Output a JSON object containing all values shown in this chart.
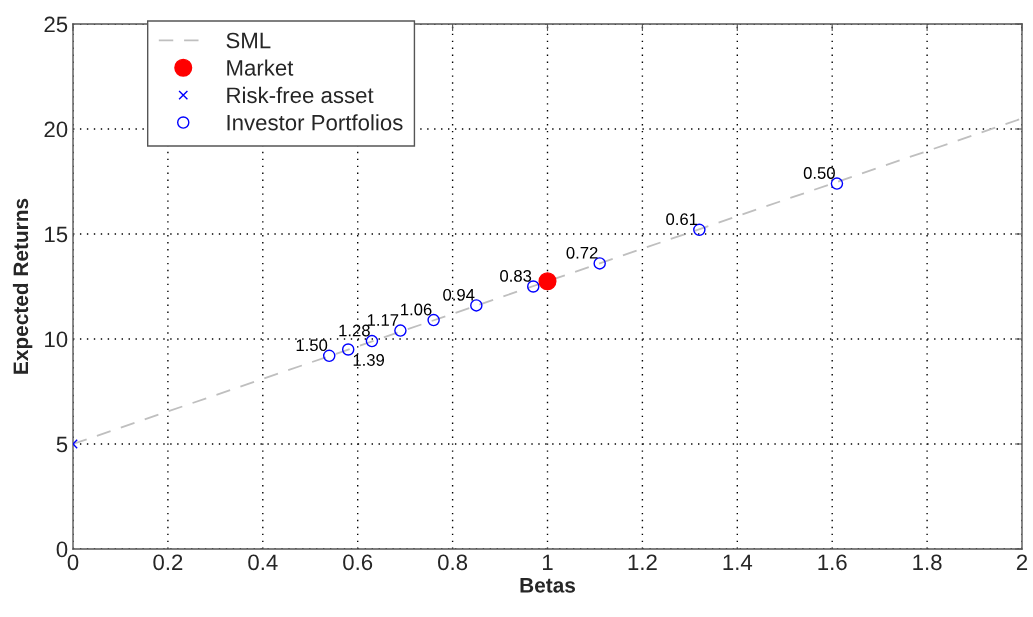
{
  "chart_data": {
    "type": "scatter",
    "xlabel": "Betas",
    "ylabel": "Expected Returns",
    "xlim": [
      0,
      2
    ],
    "ylim": [
      0,
      25
    ],
    "xticks": [
      0,
      0.2,
      0.4,
      0.6,
      0.8,
      1,
      1.2,
      1.4,
      1.6,
      1.8,
      2
    ],
    "yticks": [
      0,
      5,
      10,
      15,
      20,
      25
    ],
    "grid": true,
    "legend": "top left",
    "series": [
      {
        "name": "SML",
        "type": "line",
        "color": "#bfbfbf",
        "line_style": "dashed",
        "marker": "none",
        "x": [
          0,
          2
        ],
        "values": [
          5,
          20.5
        ]
      },
      {
        "name": "Market",
        "color": "#ff0000",
        "marker": "circle",
        "x": [
          1
        ],
        "values": [
          12.75
        ]
      },
      {
        "name": "Risk-free asset",
        "color": "#0000ff",
        "marker": "cross",
        "x": [
          0
        ],
        "values": [
          5
        ]
      },
      {
        "name": "Investor Portfolios",
        "color": "#0000ff",
        "marker": "circle",
        "x": [
          0.54,
          0.58,
          0.63,
          0.69,
          0.76,
          0.85,
          0.97,
          1.11,
          1.32,
          1.61
        ],
        "values": [
          9.2,
          9.5,
          9.9,
          10.4,
          10.9,
          11.6,
          12.5,
          13.6,
          15.2,
          17.4
        ]
      }
    ],
    "annotations": [
      {
        "text": "1.50",
        "x": 0.54,
        "y": 9.2
      },
      {
        "text": "1.39",
        "x": 0.58,
        "y": 9.5
      },
      {
        "text": "1.28",
        "x": 0.63,
        "y": 9.9
      },
      {
        "text": "1.17",
        "x": 0.69,
        "y": 10.4
      },
      {
        "text": "1.06",
        "x": 0.76,
        "y": 10.9
      },
      {
        "text": "0.94",
        "x": 0.85,
        "y": 11.6
      },
      {
        "text": "0.83",
        "x": 0.97,
        "y": 12.5
      },
      {
        "text": "0.72",
        "x": 1.11,
        "y": 13.6
      },
      {
        "text": "0.61",
        "x": 1.32,
        "y": 15.2
      },
      {
        "text": "0.50",
        "x": 1.61,
        "y": 17.4
      }
    ]
  }
}
